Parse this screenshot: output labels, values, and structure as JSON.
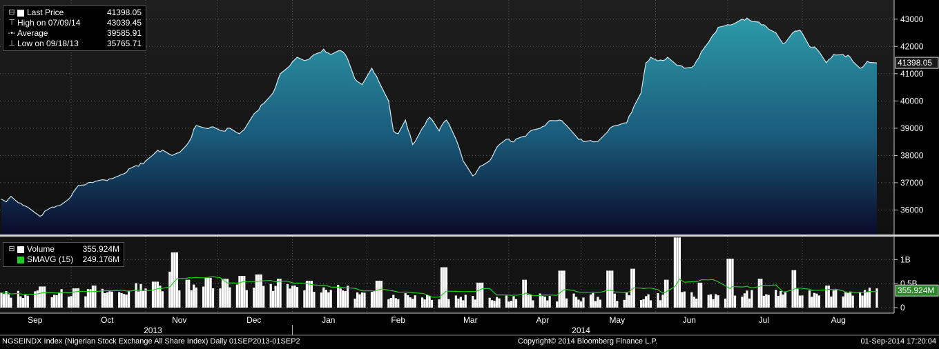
{
  "chart_data": {
    "type": "area",
    "start_date": "2013-09-02",
    "end_date": "2014-09-01",
    "price": {
      "series_name": "Last Price",
      "last": "41398.05",
      "high_label": "High on 07/09/14",
      "high_value": "43039.45",
      "average_label": "Average",
      "average_value": "39585.91",
      "low_label": "Low on 09/18/13",
      "low_value": "35765.71",
      "y_ticks": [
        "36000",
        "37000",
        "38000",
        "39000",
        "40000",
        "41000",
        "42000",
        "43000"
      ],
      "ylim": [
        35100,
        43500
      ],
      "last_tag": "41398.05",
      "anchors": [
        [
          "2013-09-02",
          36400
        ],
        [
          "2013-09-04",
          36300
        ],
        [
          "2013-09-06",
          36500
        ],
        [
          "2013-09-10",
          36250
        ],
        [
          "2013-09-13",
          36100
        ],
        [
          "2013-09-16",
          35900
        ],
        [
          "2013-09-18",
          35770
        ],
        [
          "2013-09-20",
          35950
        ],
        [
          "2013-09-24",
          36100
        ],
        [
          "2013-09-27",
          36200
        ],
        [
          "2013-10-01",
          36500
        ],
        [
          "2013-10-04",
          36900
        ],
        [
          "2013-10-08",
          37000
        ],
        [
          "2013-10-11",
          37050
        ],
        [
          "2013-10-15",
          37100
        ],
        [
          "2013-10-18",
          37150
        ],
        [
          "2013-10-22",
          37300
        ],
        [
          "2013-10-25",
          37500
        ],
        [
          "2013-10-29",
          37600
        ],
        [
          "2013-11-01",
          37800
        ],
        [
          "2013-11-05",
          38100
        ],
        [
          "2013-11-08",
          38200
        ],
        [
          "2013-11-12",
          38000
        ],
        [
          "2013-11-15",
          38100
        ],
        [
          "2013-11-19",
          38500
        ],
        [
          "2013-11-22",
          39100
        ],
        [
          "2013-11-26",
          39000
        ],
        [
          "2013-11-29",
          39050
        ],
        [
          "2013-12-03",
          38900
        ],
        [
          "2013-12-06",
          39000
        ],
        [
          "2013-12-10",
          38800
        ],
        [
          "2013-12-13",
          39100
        ],
        [
          "2013-12-17",
          39600
        ],
        [
          "2013-12-20",
          39900
        ],
        [
          "2013-12-24",
          40300
        ],
        [
          "2013-12-27",
          41000
        ],
        [
          "2013-12-31",
          41300
        ],
        [
          "2014-01-03",
          41600
        ],
        [
          "2014-01-07",
          41500
        ],
        [
          "2014-01-10",
          41700
        ],
        [
          "2014-01-14",
          41900
        ],
        [
          "2014-01-17",
          41700
        ],
        [
          "2014-01-21",
          41850
        ],
        [
          "2014-01-23",
          41700
        ],
        [
          "2014-01-27",
          40800
        ],
        [
          "2014-01-30",
          40600
        ],
        [
          "2014-02-03",
          41200
        ],
        [
          "2014-02-06",
          40700
        ],
        [
          "2014-02-10",
          40000
        ],
        [
          "2014-02-12",
          38900
        ],
        [
          "2014-02-14",
          38800
        ],
        [
          "2014-02-17",
          39300
        ],
        [
          "2014-02-20",
          38400
        ],
        [
          "2014-02-24",
          39000
        ],
        [
          "2014-02-27",
          39400
        ],
        [
          "2014-03-03",
          38900
        ],
        [
          "2014-03-06",
          39300
        ],
        [
          "2014-03-10",
          38600
        ],
        [
          "2014-03-13",
          37800
        ],
        [
          "2014-03-17",
          37250
        ],
        [
          "2014-03-20",
          37600
        ],
        [
          "2014-03-24",
          37800
        ],
        [
          "2014-03-27",
          38300
        ],
        [
          "2014-03-31",
          38600
        ],
        [
          "2014-04-03",
          38500
        ],
        [
          "2014-04-07",
          38700
        ],
        [
          "2014-04-10",
          38900
        ],
        [
          "2014-04-14",
          39000
        ],
        [
          "2014-04-17",
          39200
        ],
        [
          "2014-04-22",
          39300
        ],
        [
          "2014-04-25",
          39100
        ],
        [
          "2014-04-29",
          38700
        ],
        [
          "2014-05-02",
          38500
        ],
        [
          "2014-05-06",
          38500
        ],
        [
          "2014-05-09",
          38600
        ],
        [
          "2014-05-13",
          39000
        ],
        [
          "2014-05-16",
          39100
        ],
        [
          "2014-05-20",
          39200
        ],
        [
          "2014-05-23",
          39800
        ],
        [
          "2014-05-26",
          40300
        ],
        [
          "2014-05-28",
          41400
        ],
        [
          "2014-05-30",
          41600
        ],
        [
          "2014-06-03",
          41500
        ],
        [
          "2014-06-06",
          41600
        ],
        [
          "2014-06-10",
          41300
        ],
        [
          "2014-06-13",
          41200
        ],
        [
          "2014-06-17",
          41300
        ],
        [
          "2014-06-20",
          41800
        ],
        [
          "2014-06-24",
          42300
        ],
        [
          "2014-06-27",
          42700
        ],
        [
          "2014-07-01",
          42800
        ],
        [
          "2014-07-04",
          42850
        ],
        [
          "2014-07-09",
          43040
        ],
        [
          "2014-07-12",
          42950
        ],
        [
          "2014-07-16",
          42800
        ],
        [
          "2014-07-21",
          42500
        ],
        [
          "2014-07-24",
          42100
        ],
        [
          "2014-07-28",
          42500
        ],
        [
          "2014-07-31",
          42600
        ],
        [
          "2014-08-04",
          42000
        ],
        [
          "2014-08-07",
          41900
        ],
        [
          "2014-08-11",
          41400
        ],
        [
          "2014-08-14",
          41700
        ],
        [
          "2014-08-18",
          41700
        ],
        [
          "2014-08-21",
          41600
        ],
        [
          "2014-08-25",
          41200
        ],
        [
          "2014-08-28",
          41450
        ],
        [
          "2014-09-01",
          41398
        ]
      ]
    },
    "volume": {
      "series_name": "Volume",
      "last": "355.924M",
      "sma_label": "SMAVG (15)",
      "sma_value": "249.176M",
      "y_ticks": [
        "0",
        "0.5B",
        "1B"
      ],
      "ylim": [
        0,
        1.45
      ],
      "last_tag": "355.924M",
      "spikes": [
        [
          "2013-09-19",
          0.44
        ],
        [
          "2013-10-03",
          0.4
        ],
        [
          "2013-10-11",
          0.46
        ],
        [
          "2013-11-05",
          0.54
        ],
        [
          "2013-11-11",
          0.75
        ],
        [
          "2013-11-13",
          1.15
        ],
        [
          "2013-11-18",
          0.58
        ],
        [
          "2013-11-27",
          0.62
        ],
        [
          "2013-12-04",
          0.6
        ],
        [
          "2013-12-11",
          0.66
        ],
        [
          "2013-12-18",
          0.69
        ],
        [
          "2013-12-27",
          0.6
        ],
        [
          "2014-01-08",
          0.56
        ],
        [
          "2014-02-06",
          0.56
        ],
        [
          "2014-03-05",
          0.84
        ],
        [
          "2014-03-20",
          0.52
        ],
        [
          "2014-04-07",
          0.58
        ],
        [
          "2014-04-23",
          0.77
        ],
        [
          "2014-05-13",
          0.77
        ],
        [
          "2014-05-23",
          0.81
        ],
        [
          "2014-06-06",
          0.58
        ],
        [
          "2014-06-10",
          1.46
        ],
        [
          "2014-06-20",
          0.52
        ],
        [
          "2014-07-02",
          1.02
        ],
        [
          "2014-07-14",
          0.6
        ],
        [
          "2014-07-28",
          0.78
        ],
        [
          "2014-08-11",
          0.46
        ]
      ]
    },
    "x_months": [
      {
        "label": "Sep",
        "date": "2013-09-16"
      },
      {
        "label": "Oct",
        "date": "2013-10-16"
      },
      {
        "label": "Nov",
        "date": "2013-11-15"
      },
      {
        "label": "Dec",
        "date": "2013-12-16"
      },
      {
        "label": "Jan",
        "date": "2014-01-16"
      },
      {
        "label": "Feb",
        "date": "2014-02-14"
      },
      {
        "label": "Mar",
        "date": "2014-03-16"
      },
      {
        "label": "Apr",
        "date": "2014-04-15"
      },
      {
        "label": "May",
        "date": "2014-05-16"
      },
      {
        "label": "Jun",
        "date": "2014-06-15"
      },
      {
        "label": "Jul",
        "date": "2014-07-16"
      },
      {
        "label": "Aug",
        "date": "2014-08-16"
      }
    ],
    "x_years": [
      {
        "label": "2013",
        "date": "2013-11-04"
      },
      {
        "label": "2014",
        "date": "2014-05-01"
      }
    ],
    "year_divider": "2014-01-01",
    "grid": true
  },
  "footer": {
    "left": "NGSEINDX Index (Nigerian Stock Exchange All Share Index)  Daily 01SEP2013-01SEP2",
    "center": "Copyright© 2014 Bloomberg Finance L.P.",
    "right": "01-Sep-2014 17:20:04"
  },
  "colors": {
    "line": "#cfe7ee",
    "area_top": "#2a93a3",
    "area_bottom": "#0a0a2a",
    "volume_bar": "#ffffff",
    "sma": "#22cc22",
    "grid": "#5a6470"
  }
}
